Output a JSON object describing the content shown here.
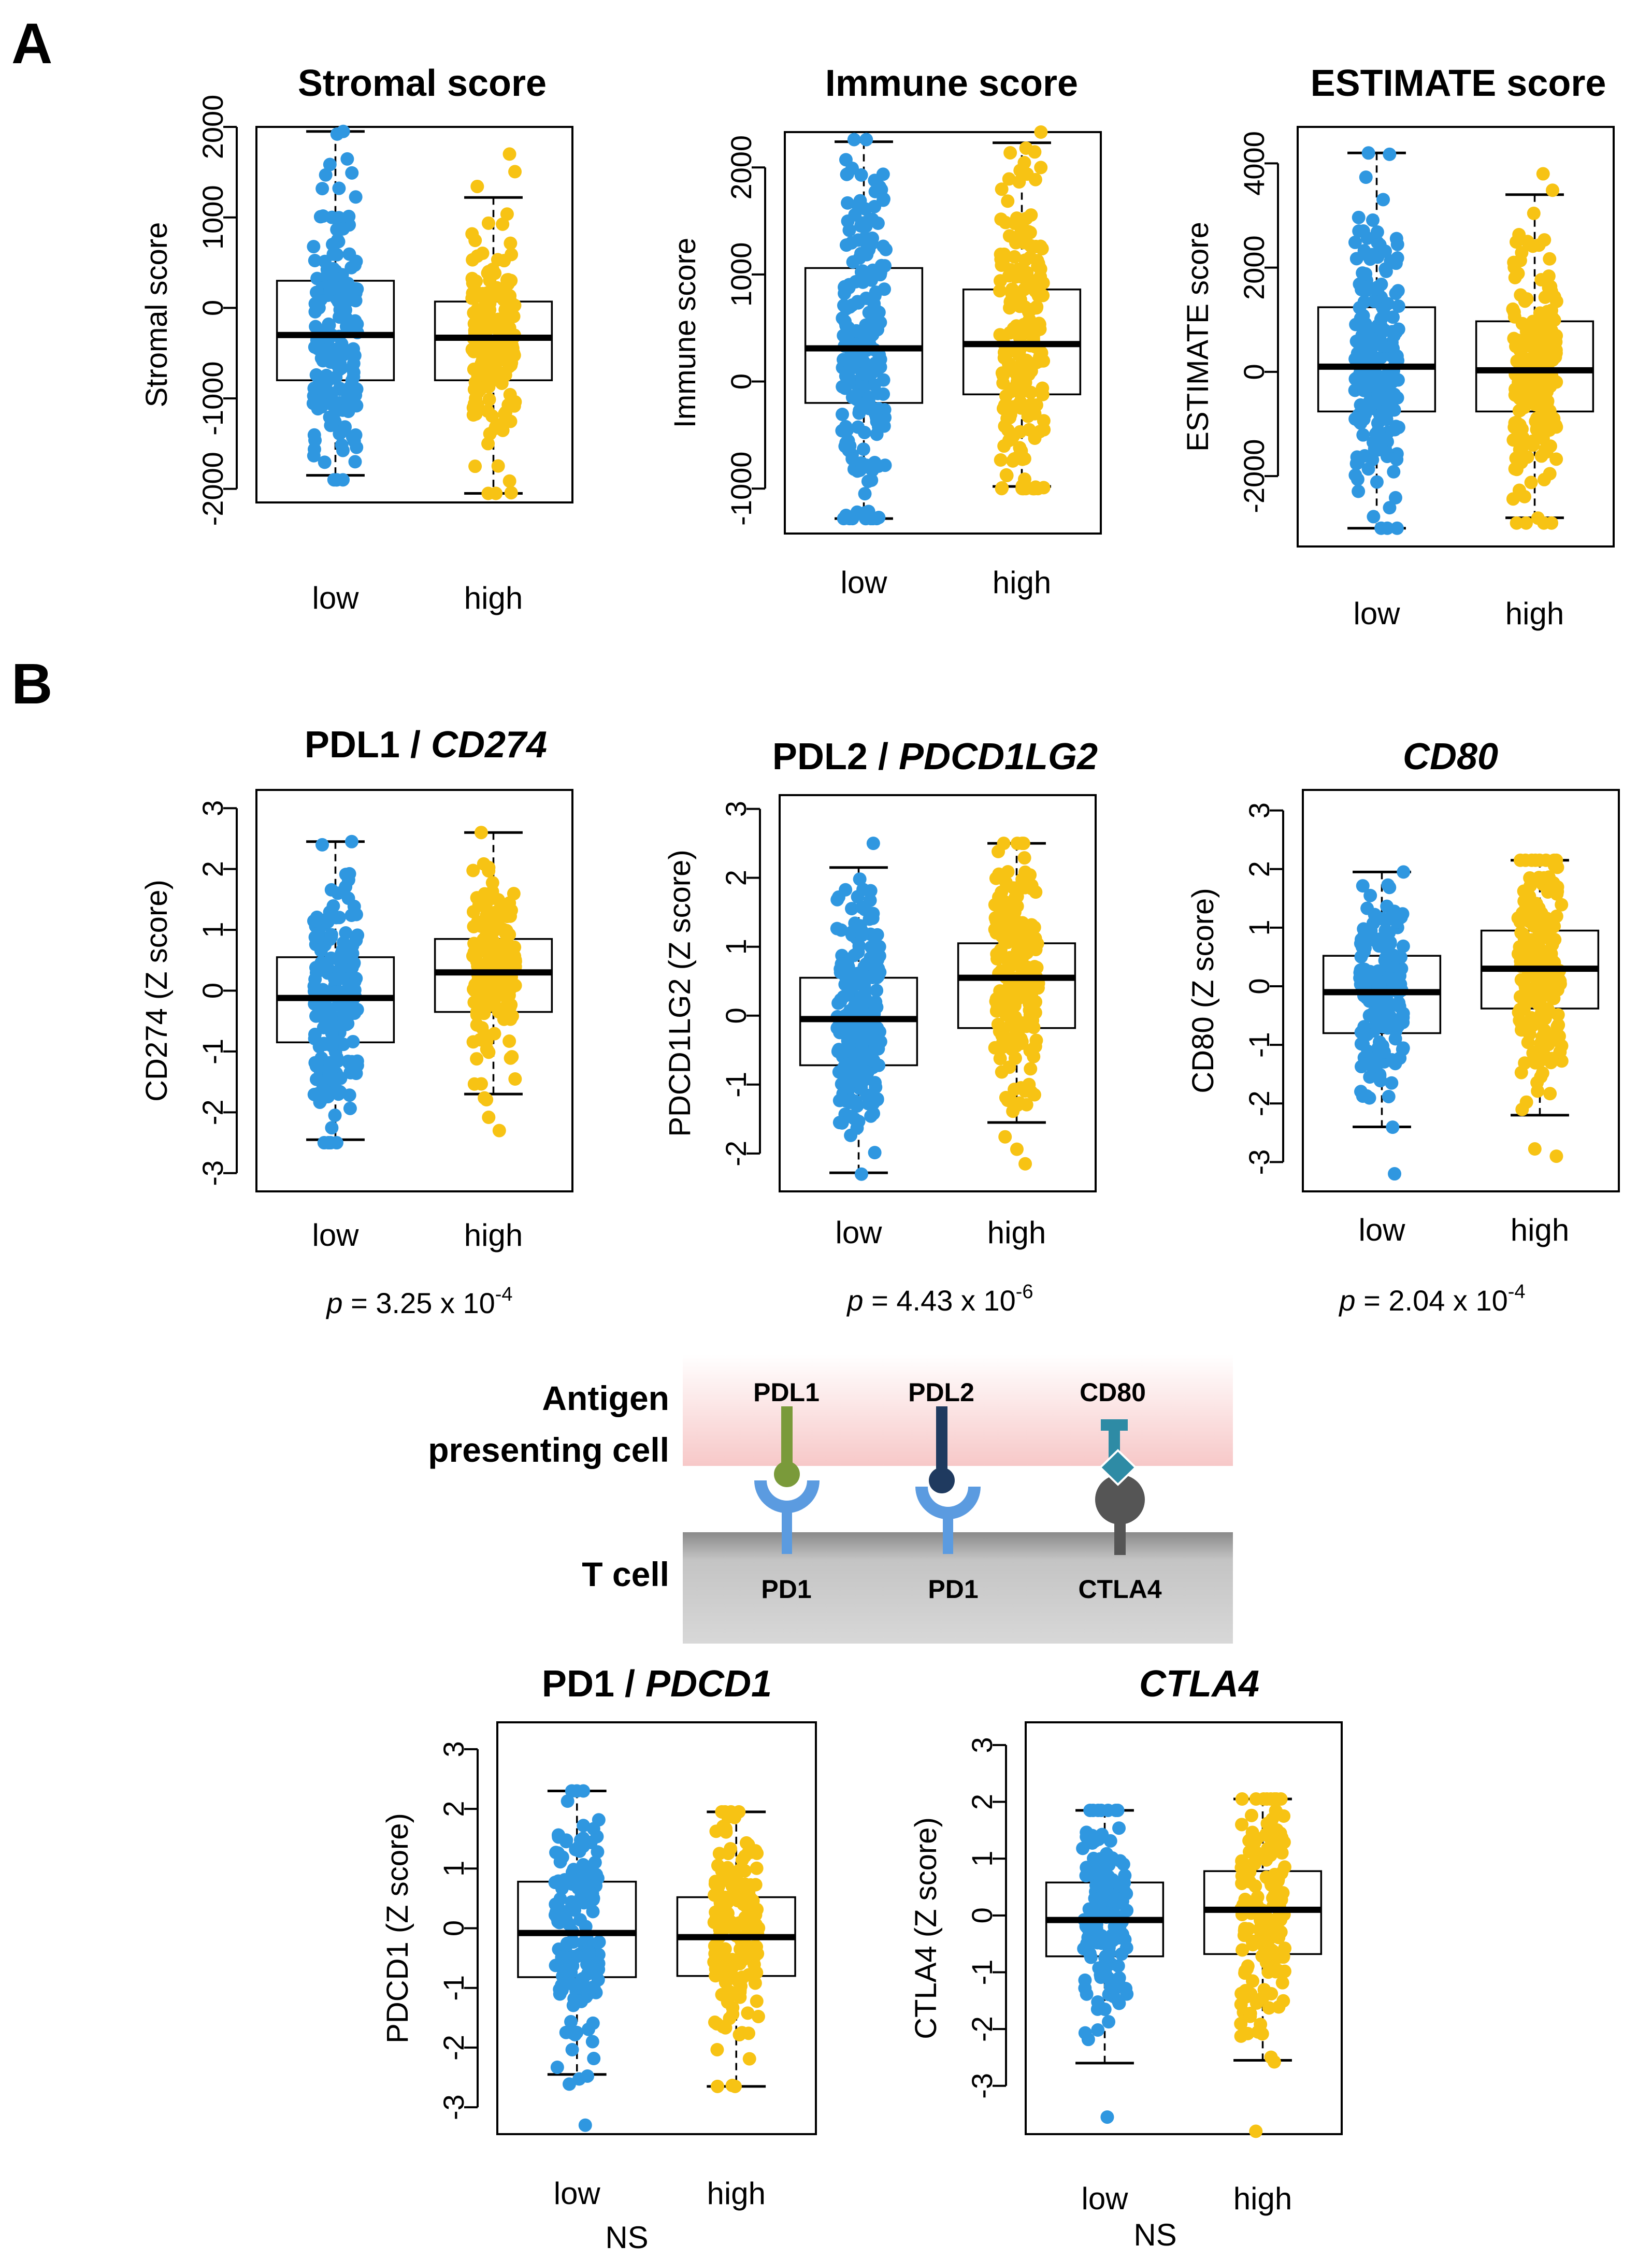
{
  "panel_labels": {
    "a": "A",
    "b": "B"
  },
  "colors": {
    "low": "#2F97E0",
    "high": "#F7C314"
  },
  "x_categories": [
    "low",
    "high"
  ],
  "pvalues": {
    "pdl1": {
      "prefix": "p",
      "text": " = 3.25 x 10",
      "exp": "-4"
    },
    "pdl2": {
      "prefix": "p",
      "text": " = 4.43 x 10",
      "exp": "-6"
    },
    "cd80": {
      "prefix": "p",
      "text": " = 2.04 x 10",
      "exp": "-4"
    }
  },
  "ns": {
    "pd1": "NS",
    "ctla4": "NS"
  },
  "diagram": {
    "apc_label_1": "Antigen",
    "apc_label_2": "presenting cell",
    "tcell_label": "T cell",
    "ligands": [
      "PDL1",
      "PDL2",
      "CD80"
    ],
    "receptors": [
      "PD1",
      "PD1",
      "CTLA4"
    ],
    "ligand_colors": [
      "#7A9A3A",
      "#1F3A5F",
      "#2E8BA5"
    ],
    "receptor_colors": [
      "#5B9BE0",
      "#5B9BE0",
      "#555555"
    ]
  },
  "chart_data": [
    {
      "id": "stromal",
      "type": "box",
      "title": "Stromal score",
      "title_plain": "",
      "title_italic": "",
      "xlabel": "",
      "ylabel": "Stromal score",
      "yticks": [
        -2000,
        -1000,
        0,
        1000,
        2000
      ],
      "ylim": [
        -2150,
        2000
      ],
      "groups": [
        {
          "name": "low",
          "q1": -800,
          "median": -300,
          "q3": 300,
          "whisker_low": -1850,
          "whisker_high": 1950,
          "min": -1900,
          "max": 1950,
          "n": 180,
          "seed": 11
        },
        {
          "name": "high",
          "q1": -800,
          "median": -330,
          "q3": 70,
          "whisker_low": -2050,
          "whisker_high": 1220,
          "min": -2050,
          "max": 1700,
          "n": 180,
          "seed": 12
        }
      ]
    },
    {
      "id": "immune",
      "type": "box",
      "title": "Immune score",
      "title_plain": "",
      "title_italic": "",
      "xlabel": "",
      "ylabel": "Immune score",
      "yticks": [
        -1000,
        0,
        1000,
        2000
      ],
      "ylim": [
        -1420,
        2330
      ],
      "groups": [
        {
          "name": "low",
          "q1": -200,
          "median": 310,
          "q3": 1060,
          "whisker_low": -1280,
          "whisker_high": 2240,
          "min": -1280,
          "max": 2260,
          "n": 200,
          "seed": 21
        },
        {
          "name": "high",
          "q1": -120,
          "median": 350,
          "q3": 860,
          "whisker_low": -980,
          "whisker_high": 2230,
          "min": -1000,
          "max": 2330,
          "n": 200,
          "seed": 22
        }
      ]
    },
    {
      "id": "estimate",
      "type": "box",
      "title": "ESTIMATE score",
      "title_plain": "",
      "title_italic": "",
      "xlabel": "",
      "ylabel": "ESTIMATE score",
      "yticks": [
        -2000,
        0,
        2000,
        4000
      ],
      "ylim": [
        -3350,
        4700
      ],
      "groups": [
        {
          "name": "low",
          "q1": -760,
          "median": 100,
          "q3": 1240,
          "whisker_low": -3000,
          "whisker_high": 4200,
          "min": -3000,
          "max": 4200,
          "n": 200,
          "seed": 31
        },
        {
          "name": "high",
          "q1": -760,
          "median": 30,
          "q3": 970,
          "whisker_low": -2800,
          "whisker_high": 3400,
          "min": -2900,
          "max": 3800,
          "n": 200,
          "seed": 32
        }
      ]
    },
    {
      "id": "pdl1",
      "type": "box",
      "title": "",
      "title_plain": "PDL1 / ",
      "title_italic": "CD274",
      "xlabel": "",
      "ylabel": "CD274 (Z score)",
      "yticks": [
        -3,
        -2,
        -1,
        0,
        1,
        2,
        3
      ],
      "ylim": [
        -3.3,
        3.3
      ],
      "groups": [
        {
          "name": "low",
          "q1": -0.85,
          "median": -0.12,
          "q3": 0.55,
          "whisker_low": -2.45,
          "whisker_high": 2.45,
          "min": -2.5,
          "max": 2.45,
          "n": 170,
          "seed": 41
        },
        {
          "name": "high",
          "q1": -0.35,
          "median": 0.3,
          "q3": 0.85,
          "whisker_low": -1.7,
          "whisker_high": 2.6,
          "min": -2.3,
          "max": 2.6,
          "n": 170,
          "seed": 42
        }
      ]
    },
    {
      "id": "pdl2",
      "type": "box",
      "title": "",
      "title_plain": "PDL2 / ",
      "title_italic": "PDCD1LG2",
      "xlabel": "",
      "ylabel": "PDCD1LG2 (Z score)",
      "yticks": [
        -2,
        -1,
        0,
        1,
        2,
        3
      ],
      "ylim": [
        -2.55,
        3.2
      ],
      "groups": [
        {
          "name": "low",
          "q1": -0.72,
          "median": -0.05,
          "q3": 0.55,
          "whisker_low": -2.28,
          "whisker_high": 2.15,
          "min": -2.3,
          "max": 2.5,
          "n": 200,
          "seed": 51
        },
        {
          "name": "high",
          "q1": -0.18,
          "median": 0.55,
          "q3": 1.05,
          "whisker_low": -1.55,
          "whisker_high": 2.5,
          "min": -2.15,
          "max": 2.5,
          "n": 200,
          "seed": 52
        }
      ]
    },
    {
      "id": "cd80",
      "type": "box",
      "title": "",
      "title_plain": "",
      "title_italic": "CD80",
      "xlabel": "",
      "ylabel": "CD80 (Z score)",
      "yticks": [
        -3,
        -2,
        -1,
        0,
        1,
        2,
        3
      ],
      "ylim": [
        -3.5,
        3.35
      ],
      "groups": [
        {
          "name": "low",
          "q1": -0.8,
          "median": -0.1,
          "q3": 0.52,
          "whisker_low": -2.4,
          "whisker_high": 1.95,
          "min": -3.2,
          "max": 1.95,
          "n": 180,
          "seed": 61
        },
        {
          "name": "high",
          "q1": -0.38,
          "median": 0.3,
          "q3": 0.95,
          "whisker_low": -2.2,
          "whisker_high": 2.15,
          "min": -2.9,
          "max": 2.15,
          "n": 180,
          "seed": 62
        }
      ]
    },
    {
      "id": "pd1",
      "type": "box",
      "title": "",
      "title_plain": "PD1 / ",
      "title_italic": "PDCD1",
      "xlabel": "",
      "ylabel": "PDCD1 (Z score)",
      "yticks": [
        -3,
        -2,
        -1,
        0,
        1,
        2,
        3
      ],
      "ylim": [
        -3.45,
        3.45
      ],
      "groups": [
        {
          "name": "low",
          "q1": -0.82,
          "median": -0.08,
          "q3": 0.78,
          "whisker_low": -2.45,
          "whisker_high": 2.3,
          "min": -3.3,
          "max": 2.3,
          "n": 160,
          "seed": 71
        },
        {
          "name": "high",
          "q1": -0.8,
          "median": -0.15,
          "q3": 0.52,
          "whisker_low": -2.65,
          "whisker_high": 1.95,
          "min": -2.65,
          "max": 1.95,
          "n": 160,
          "seed": 72
        }
      ]
    },
    {
      "id": "ctla4",
      "type": "box",
      "title": "",
      "title_plain": "",
      "title_italic": "CTLA4",
      "xlabel": "",
      "ylabel": "CTLA4 (Z score)",
      "yticks": [
        -3,
        -2,
        -1,
        0,
        1,
        2,
        3
      ],
      "ylim": [
        -3.85,
        3.4
      ],
      "groups": [
        {
          "name": "low",
          "q1": -0.72,
          "median": -0.08,
          "q3": 0.58,
          "whisker_low": -2.6,
          "whisker_high": 1.85,
          "min": -3.55,
          "max": 1.85,
          "n": 160,
          "seed": 81
        },
        {
          "name": "high",
          "q1": -0.68,
          "median": 0.1,
          "q3": 0.78,
          "whisker_low": -2.55,
          "whisker_high": 2.05,
          "min": -3.8,
          "max": 2.05,
          "n": 160,
          "seed": 82
        }
      ]
    }
  ]
}
